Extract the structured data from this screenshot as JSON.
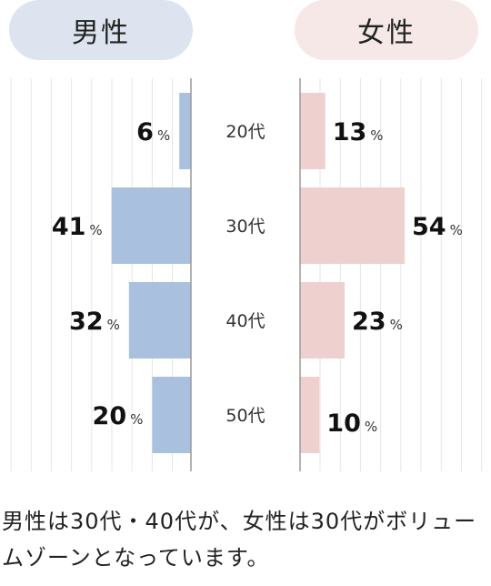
{
  "male_header": "男性",
  "female_header": "女性",
  "colors": {
    "male_header_bg": "#dde4ef",
    "female_header_bg": "#f6e8e6",
    "male_bar": "#a9c1df",
    "female_bar": "#eed0cf",
    "grid": "#e6e6e6",
    "axis": "#9a9a9a"
  },
  "chart_data": {
    "type": "bar",
    "categories": [
      "20代",
      "30代",
      "40代",
      "50代"
    ],
    "series": [
      {
        "name": "男性",
        "values": [
          6,
          41,
          32,
          20
        ]
      },
      {
        "name": "女性",
        "values": [
          13,
          54,
          23,
          10
        ]
      }
    ],
    "unit": "%",
    "xlim": [
      0,
      100
    ]
  },
  "caption": "男性は30代・40代が、女性は30代がボリュームゾーンとなっています。"
}
